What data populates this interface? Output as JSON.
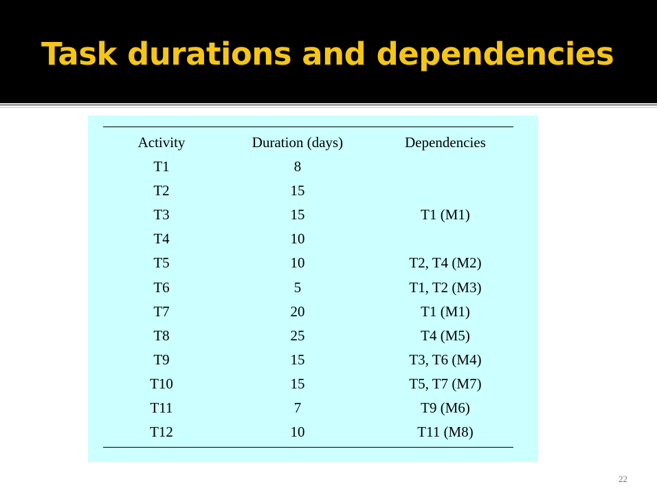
{
  "title": "Task durations and dependencies",
  "table": {
    "header": [
      "Activity",
      "Duration (days)",
      "Dependencies"
    ],
    "rows": [
      [
        "T1",
        8,
        null
      ],
      [
        "T2",
        15,
        null
      ],
      [
        "T3",
        15,
        "T1 (M1)"
      ],
      [
        "T4",
        10,
        null
      ],
      [
        "T5",
        10,
        "T2, T4 (M2)"
      ],
      [
        "T6",
        5,
        "T1, T2 (M3)"
      ],
      [
        "T7",
        20,
        "T1 (M1)"
      ],
      [
        "T8",
        25,
        "T4 (M5)"
      ],
      [
        "T9",
        15,
        "T3, T6 (M4)"
      ],
      [
        "T10",
        15,
        "T5, T7 (M7)"
      ],
      [
        "T11",
        7,
        "T9 (M6)"
      ],
      [
        "T12",
        10,
        "T11 (M8)"
      ]
    ]
  },
  "page_number": "22"
}
